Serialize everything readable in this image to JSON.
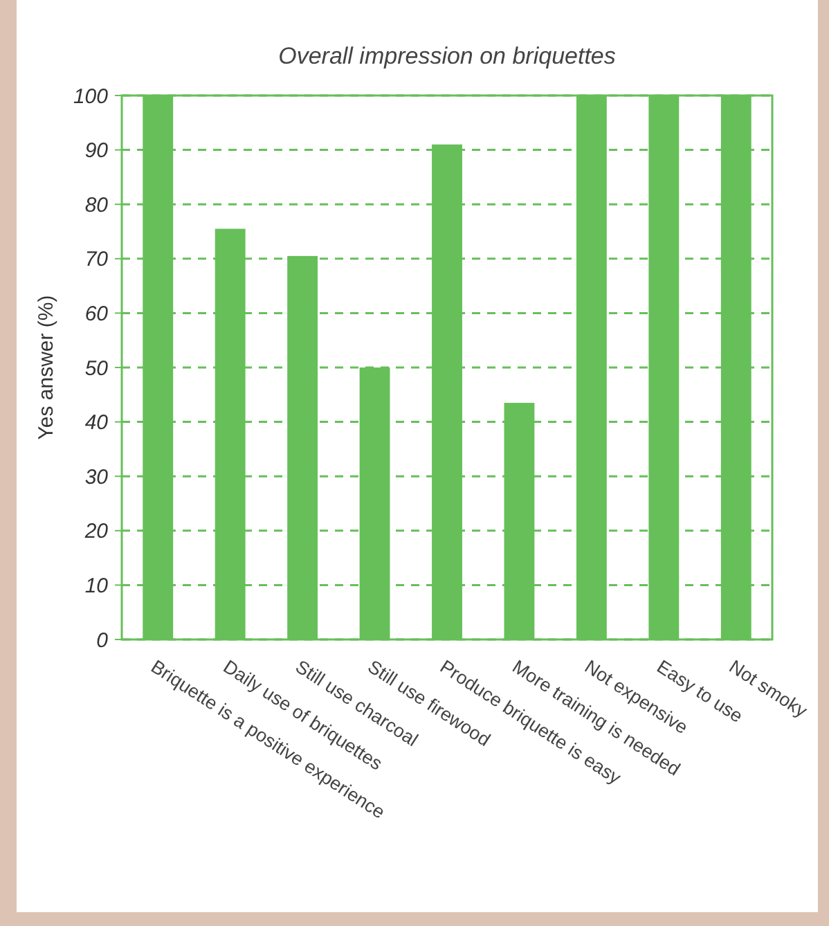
{
  "chart_data": {
    "type": "bar",
    "title": "Overall impression on briquettes",
    "ylabel": "Yes answer (%)",
    "categories": [
      "Briquette is a positive experience",
      "Daily use of briquettes",
      "Still use charcoal",
      "Still use firewood",
      "Produce briquette is easy",
      "More training is needed",
      "Not expensive",
      "Easy to use",
      "Not smoky"
    ],
    "values": [
      100,
      75.5,
      70.5,
      50,
      91,
      43.5,
      100,
      100,
      100
    ],
    "color": "#66bf59",
    "ylim": [
      0,
      100
    ],
    "yticks": [
      0,
      10,
      20,
      30,
      40,
      50,
      60,
      70,
      80,
      90,
      100
    ],
    "grid": "y"
  }
}
